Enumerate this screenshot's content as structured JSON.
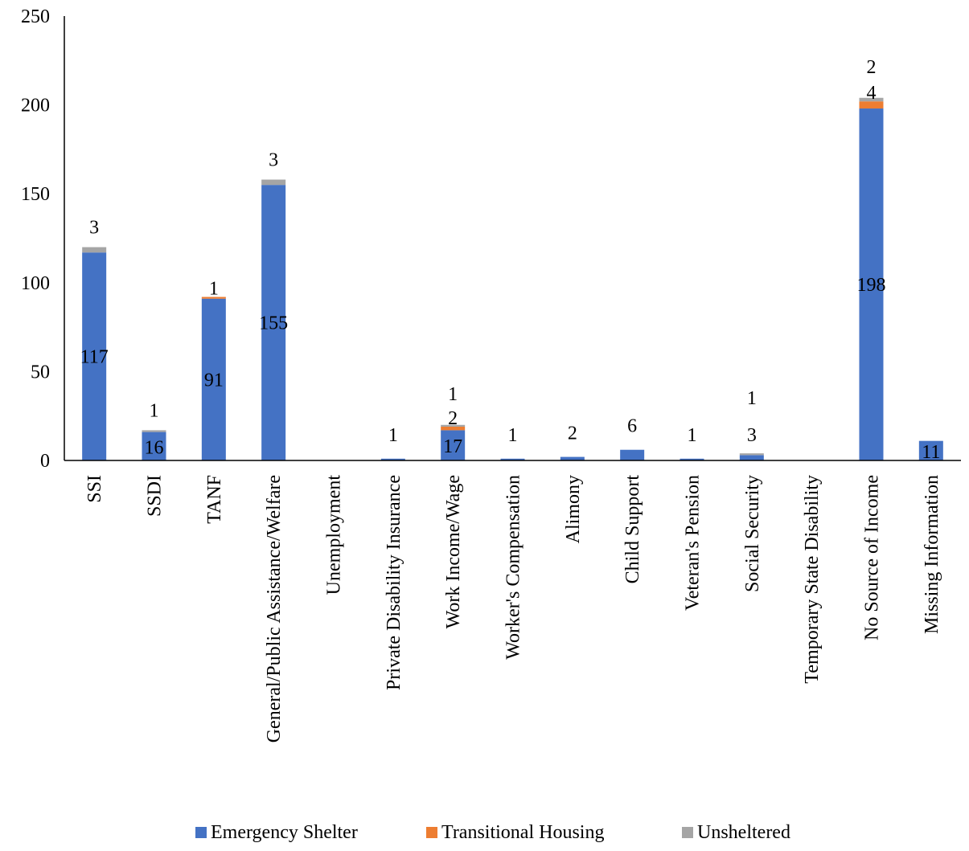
{
  "chart_data": {
    "type": "bar",
    "stacked": true,
    "categories": [
      "SSI",
      "SSDI",
      "TANF",
      "General/Public Assistance/Welfare",
      "Unemployment",
      "Private Disability Insurance",
      "Work Income/Wage",
      "Worker's Compensation",
      "Alimony",
      "Child Support",
      "Veteran's Pension",
      "Social Security",
      "Temporary State Disability",
      "No Source of Income",
      "Missing Information"
    ],
    "series": [
      {
        "name": "Emergency Shelter",
        "color": "#4472c4",
        "values": [
          117,
          16,
          91,
          155,
          0,
          1,
          17,
          1,
          2,
          6,
          1,
          3,
          0,
          198,
          11
        ],
        "labels": [
          "117",
          "16",
          "91",
          "155",
          "",
          "1",
          "17",
          "1",
          "2",
          "6",
          "1",
          "3",
          "",
          "198",
          "11"
        ]
      },
      {
        "name": "Transitional Housing",
        "color": "#ed7d31",
        "values": [
          0,
          0,
          1,
          0,
          0,
          0,
          2,
          0,
          0,
          0,
          0,
          0,
          0,
          4,
          0
        ],
        "labels": [
          "",
          "",
          "1",
          "",
          "",
          "",
          "2",
          "",
          "",
          "",
          "",
          "",
          "",
          "4",
          ""
        ]
      },
      {
        "name": "Unsheltered",
        "color": "#a5a5a5",
        "values": [
          3,
          1,
          0,
          3,
          0,
          0,
          1,
          0,
          0,
          0,
          0,
          1,
          0,
          2,
          0
        ],
        "labels": [
          "3",
          "1",
          "",
          "3",
          "",
          "",
          "1",
          "",
          "",
          "",
          "",
          "1",
          "",
          "2",
          ""
        ]
      }
    ],
    "ylim": [
      0,
      250
    ],
    "yticks": [
      "0",
      "50",
      "100",
      "150",
      "200",
      "250"
    ],
    "grid": false,
    "legend_position": "bottom"
  }
}
